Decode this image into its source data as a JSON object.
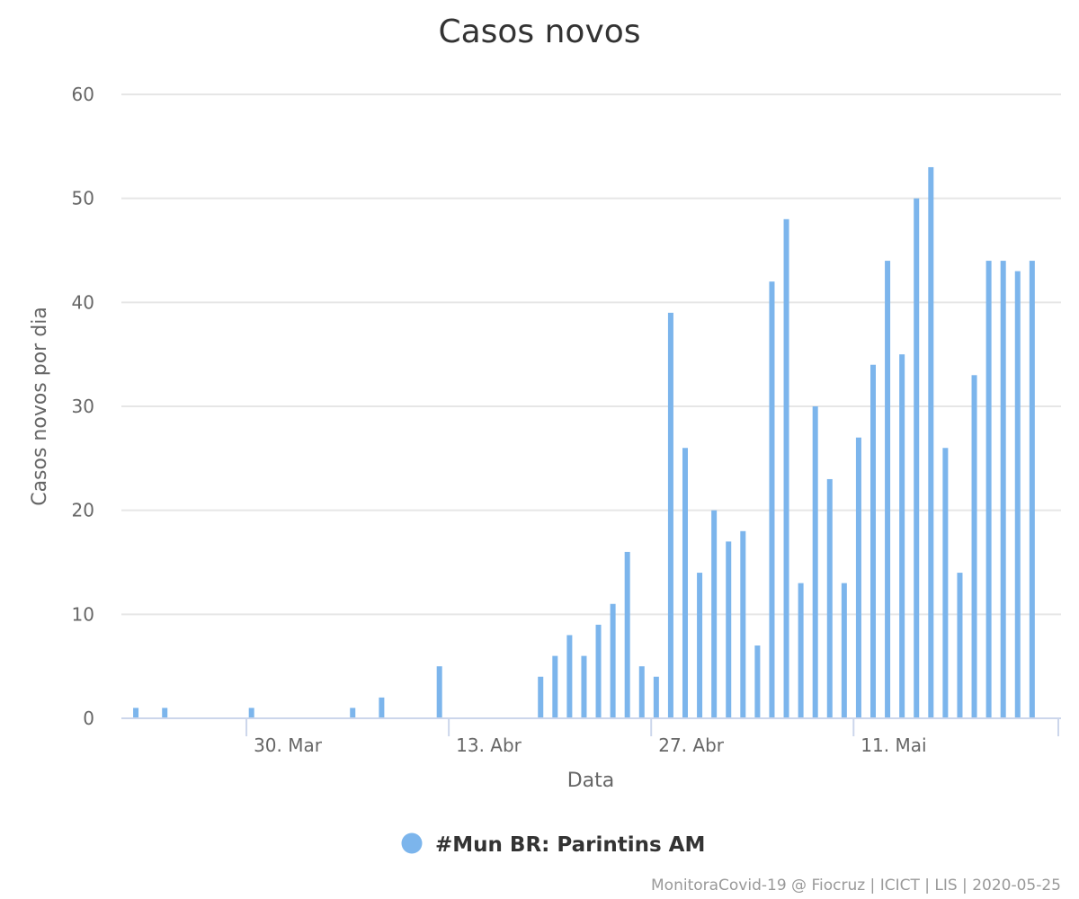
{
  "chart_data": {
    "type": "bar",
    "title": "Casos novos",
    "xlabel": "Data",
    "ylabel": "Casos novos por dia",
    "ylim": [
      0,
      60
    ],
    "y_ticks": [
      "0",
      "10",
      "20",
      "30",
      "40",
      "50",
      "60"
    ],
    "x_ticks": [
      {
        "date": "2020-03-30",
        "label": "30. Mar"
      },
      {
        "date": "2020-04-13",
        "label": "13. Abr"
      },
      {
        "date": "2020-04-27",
        "label": "27. Abr"
      },
      {
        "date": "2020-05-11",
        "label": "11. Mai"
      }
    ],
    "x_range": [
      "2020-03-21",
      "2020-05-25"
    ],
    "grid": true,
    "legend_position": "bottom-center",
    "series": [
      {
        "name": "#Mun BR: Parintins AM",
        "color": "#7cb5ec",
        "points": [
          [
            "2020-03-22",
            1
          ],
          [
            "2020-03-24",
            1
          ],
          [
            "2020-03-30",
            1
          ],
          [
            "2020-04-06",
            1
          ],
          [
            "2020-04-08",
            2
          ],
          [
            "2020-04-12",
            5
          ],
          [
            "2020-04-19",
            4
          ],
          [
            "2020-04-20",
            6
          ],
          [
            "2020-04-21",
            8
          ],
          [
            "2020-04-22",
            6
          ],
          [
            "2020-04-23",
            9
          ],
          [
            "2020-04-24",
            11
          ],
          [
            "2020-04-25",
            16
          ],
          [
            "2020-04-26",
            5
          ],
          [
            "2020-04-27",
            4
          ],
          [
            "2020-04-28",
            39
          ],
          [
            "2020-04-29",
            26
          ],
          [
            "2020-04-30",
            14
          ],
          [
            "2020-05-01",
            20
          ],
          [
            "2020-05-02",
            17
          ],
          [
            "2020-05-03",
            18
          ],
          [
            "2020-05-04",
            7
          ],
          [
            "2020-05-05",
            42
          ],
          [
            "2020-05-06",
            48
          ],
          [
            "2020-05-07",
            13
          ],
          [
            "2020-05-08",
            30
          ],
          [
            "2020-05-09",
            23
          ],
          [
            "2020-05-10",
            13
          ],
          [
            "2020-05-11",
            27
          ],
          [
            "2020-05-12",
            34
          ],
          [
            "2020-05-13",
            44
          ],
          [
            "2020-05-14",
            35
          ],
          [
            "2020-05-15",
            50
          ],
          [
            "2020-05-16",
            53
          ],
          [
            "2020-05-17",
            26
          ],
          [
            "2020-05-18",
            14
          ],
          [
            "2020-05-19",
            33
          ],
          [
            "2020-05-20",
            44
          ],
          [
            "2020-05-21",
            44
          ],
          [
            "2020-05-22",
            43
          ],
          [
            "2020-05-23",
            44
          ]
        ]
      }
    ]
  },
  "credits": "MonitoraCovid-19 @ Fiocruz | ICICT | LIS | 2020-05-25"
}
